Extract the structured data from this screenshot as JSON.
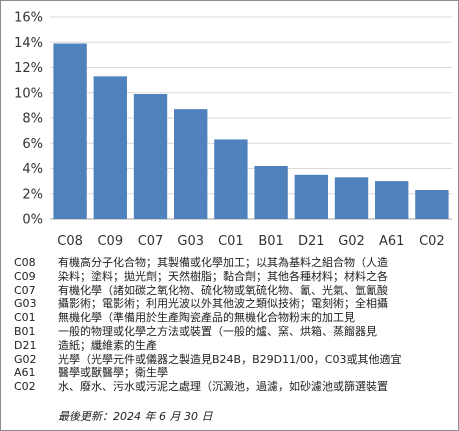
{
  "chart_data": {
    "type": "bar",
    "categories": [
      "C08",
      "C09",
      "C07",
      "G03",
      "C01",
      "B01",
      "D21",
      "G02",
      "A61",
      "C02"
    ],
    "values": [
      13.9,
      11.3,
      9.9,
      8.7,
      6.3,
      4.2,
      3.5,
      3.3,
      3.0,
      2.3
    ],
    "title": "",
    "xlabel": "",
    "ylabel": "",
    "ylim": [
      0,
      16
    ],
    "y_ticks": [
      "0%",
      "2%",
      "4%",
      "6%",
      "8%",
      "10%",
      "12%",
      "14%",
      "16%"
    ],
    "grid": true,
    "bar_color": "#4f81bd"
  },
  "legend": [
    {
      "code": "C08",
      "text": "有機高分子化合物；其製備或化學加工；以其為基料之組合物（人造"
    },
    {
      "code": "C09",
      "text": "染料；塗料；拋光劑；天然樹脂；黏合劑；其他各種材料；材料之各"
    },
    {
      "code": "C07",
      "text": "有機化學（諸如碳之氧化物、硫化物或氧硫化物、氰、光氣、氫氰酸"
    },
    {
      "code": "G03",
      "text": "攝影術；電影術；利用光波以外其他波之類似技術；電刻術；全相攝"
    },
    {
      "code": "C01",
      "text": "無機化學（準備用於生產陶瓷產品的無機化合物粉末的加工見"
    },
    {
      "code": "B01",
      "text": "一般的物理或化學之方法或裝置（一般的爐、窯、烘箱、蒸餾器見"
    },
    {
      "code": "D21",
      "text": "造紙；纖維素的生產"
    },
    {
      "code": "G02",
      "text": "光學（光學元件或儀器之製造見B24B，B29D11/00，C03或其他適宜"
    },
    {
      "code": "A61",
      "text": "醫學或獸醫學；衛生學"
    },
    {
      "code": "C02",
      "text": "水、廢水、污水或污泥之處理（沉澱池，過濾，如砂濾池或篩選裝置"
    }
  ],
  "updated_label": "最後更新：2024 年 6 月 30 日"
}
